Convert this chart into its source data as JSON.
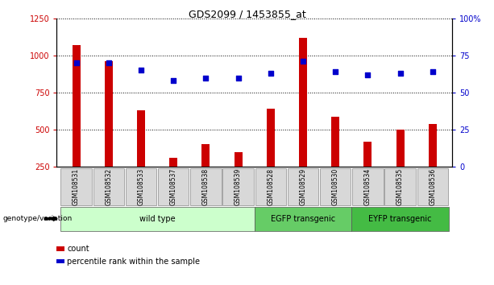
{
  "title": "GDS2099 / 1453855_at",
  "categories": [
    "GSM108531",
    "GSM108532",
    "GSM108533",
    "GSM108537",
    "GSM108538",
    "GSM108539",
    "GSM108528",
    "GSM108529",
    "GSM108530",
    "GSM108534",
    "GSM108535",
    "GSM108536"
  ],
  "bar_values": [
    1070,
    960,
    630,
    310,
    400,
    350,
    640,
    1120,
    590,
    420,
    500,
    540
  ],
  "dot_values": [
    70,
    70,
    65,
    58,
    60,
    60,
    63,
    71,
    64,
    62,
    63,
    64
  ],
  "bar_color": "#cc0000",
  "dot_color": "#0000cc",
  "ylim_left": [
    250,
    1250
  ],
  "ylim_right": [
    0,
    100
  ],
  "yticks_left": [
    250,
    500,
    750,
    1000,
    1250
  ],
  "yticks_right": [
    0,
    25,
    50,
    75,
    100
  ],
  "ytick_labels_right": [
    "0",
    "25",
    "50",
    "75",
    "100%"
  ],
  "groups": [
    {
      "label": "wild type",
      "start": 0,
      "end": 6,
      "color": "#ccffcc"
    },
    {
      "label": "EGFP transgenic",
      "start": 6,
      "end": 9,
      "color": "#66cc66"
    },
    {
      "label": "EYFP transgenic",
      "start": 9,
      "end": 12,
      "color": "#44bb44"
    }
  ],
  "group_label": "genotype/variation",
  "legend_count_label": "count",
  "legend_percentile_label": "percentile rank within the sample",
  "bar_width": 0.25,
  "tick_label_bg": "#d8d8d8"
}
